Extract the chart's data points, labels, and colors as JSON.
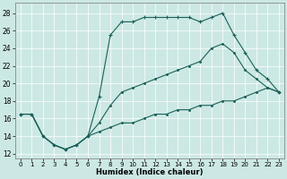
{
  "xlabel": "Humidex (Indice chaleur)",
  "xlim": [
    -0.5,
    23.5
  ],
  "ylim": [
    11.5,
    29.2
  ],
  "xticks": [
    0,
    1,
    2,
    3,
    4,
    5,
    6,
    7,
    8,
    9,
    10,
    11,
    12,
    13,
    14,
    15,
    16,
    17,
    18,
    19,
    20,
    21,
    22,
    23
  ],
  "yticks": [
    12,
    14,
    16,
    18,
    20,
    22,
    24,
    26,
    28
  ],
  "bg_color": "#cce8e4",
  "line_color": "#1a6059",
  "curve1_x": [
    0,
    1,
    2,
    3,
    4,
    5,
    6,
    7,
    8,
    9,
    10,
    11,
    12,
    13,
    14,
    15,
    16,
    17,
    18,
    19,
    20,
    21,
    22,
    23
  ],
  "curve1_y": [
    16.5,
    16.5,
    14.0,
    13.0,
    12.5,
    13.0,
    14.0,
    18.5,
    25.5,
    27.0,
    27.0,
    27.5,
    27.5,
    27.5,
    27.5,
    27.5,
    27.0,
    27.5,
    28.0,
    25.5,
    23.5,
    21.5,
    20.5,
    19.0
  ],
  "curve2_x": [
    0,
    1,
    2,
    3,
    4,
    5,
    6,
    7,
    8,
    9,
    10,
    11,
    12,
    13,
    14,
    15,
    16,
    17,
    18,
    19,
    20,
    21,
    22,
    23
  ],
  "curve2_y": [
    16.5,
    16.5,
    14.0,
    13.0,
    12.5,
    13.0,
    14.0,
    15.5,
    17.5,
    19.0,
    19.5,
    20.0,
    20.5,
    21.0,
    21.5,
    22.0,
    22.5,
    24.0,
    24.5,
    23.5,
    21.5,
    20.5,
    19.5,
    19.0
  ],
  "curve3_x": [
    0,
    1,
    2,
    3,
    4,
    5,
    6,
    7,
    8,
    9,
    10,
    11,
    12,
    13,
    14,
    15,
    16,
    17,
    18,
    19,
    20,
    21,
    22,
    23
  ],
  "curve3_y": [
    16.5,
    16.5,
    14.0,
    13.0,
    12.5,
    13.0,
    14.0,
    14.5,
    15.0,
    15.5,
    15.5,
    16.0,
    16.5,
    16.5,
    17.0,
    17.0,
    17.5,
    17.5,
    18.0,
    18.0,
    18.5,
    19.0,
    19.5,
    19.0
  ]
}
